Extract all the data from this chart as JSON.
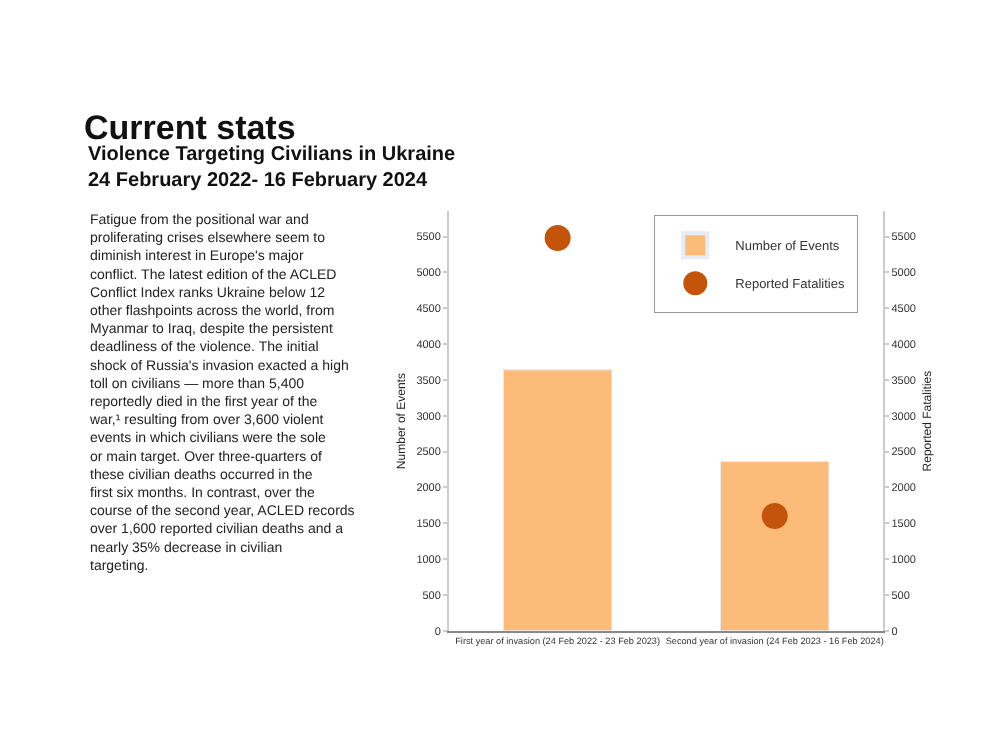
{
  "chart_data": {
    "type": "bar",
    "title": "Current stats",
    "subtitle": "Violence Targeting Civilians in Ukraine\n24 February 2022- 16 February 2024",
    "categories": [
      "First year of invasion (24 Feb 2022 - 23 Feb 2023)",
      "Second year of invasion (24 Feb 2023 - 16 Feb 2024)"
    ],
    "series": [
      {
        "name": "Number of Events",
        "color": "#fdbb7a",
        "values": [
          3640,
          2360
        ]
      },
      {
        "name": "Reported Fatalities",
        "type": "scatter",
        "axis": "y2",
        "color": "#c4540c",
        "values": [
          5480,
          1600
        ]
      }
    ],
    "ylabel": "Number of Events",
    "y2label": "Reported Fatalities",
    "ylim": [
      0,
      5850
    ],
    "yticks": [
      0,
      500,
      1000,
      1500,
      2000,
      2500,
      3000,
      3500,
      4000,
      4500,
      5000,
      5500
    ],
    "y2lim": [
      0,
      5850
    ],
    "y2ticks": [
      0,
      500,
      1000,
      1500,
      2000,
      2500,
      3000,
      3500,
      4000,
      4500,
      5000,
      5500
    ],
    "legend": "top right",
    "marker": "circle",
    "annotations": [
      "Fatigue from the positional war and proliferating crises elsewhere seem to diminish interest in Europe's major conflict. The latest edition of the ACLED Conflict Index ranks Ukraine below 12 other flashpoints across the world, from Myanmar to Iraq, despite the persistent deadliness of the violence. The initial shock of Russia's invasion exacted a high toll on civilians — more than 5,400 reportedly died in the first year of the war,¹ resulting from over 3,600 violent events in which civilians were the sole or main target. Over three-quarters of these civilian deaths occurred in the first six months. In contrast, over the course of the second year, ACLED records over 1,600 reported civilian deaths and a nearly 35% decrease in civilian targeting."
    ]
  }
}
